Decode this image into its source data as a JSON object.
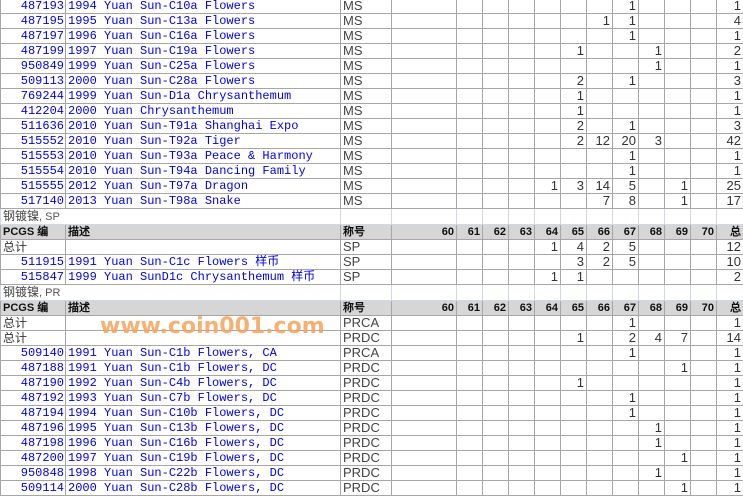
{
  "grades": [
    "60",
    "61",
    "62",
    "63",
    "64",
    "65",
    "66",
    "67",
    "68",
    "69",
    "70"
  ],
  "headers": {
    "code": "PCGS 编",
    "desc": "描述",
    "designation": "称号",
    "total": "总"
  },
  "watermark": "www.coin001.com",
  "sections": [
    {
      "label": null,
      "show_header": false,
      "rows": [
        {
          "code": "487193",
          "desc": "1994 Yuan Sun-C10a Flowers",
          "grade": "MS",
          "counts": [
            null,
            null,
            null,
            null,
            null,
            null,
            null,
            1,
            null,
            null,
            null
          ],
          "total": 1
        },
        {
          "code": "487195",
          "desc": "1995 Yuan Sun-C13a Flowers",
          "grade": "MS",
          "counts": [
            null,
            null,
            null,
            null,
            null,
            null,
            1,
            1,
            null,
            null,
            null
          ],
          "total": 4
        },
        {
          "code": "487197",
          "desc": "1996 Yuan Sun-C16a Flowers",
          "grade": "MS",
          "counts": [
            null,
            null,
            null,
            null,
            null,
            null,
            null,
            1,
            null,
            null,
            null
          ],
          "total": 1
        },
        {
          "code": "487199",
          "desc": "1997 Yuan Sun-C19a Flowers",
          "grade": "MS",
          "counts": [
            null,
            null,
            null,
            null,
            null,
            1,
            null,
            null,
            1,
            null,
            null
          ],
          "total": 2
        },
        {
          "code": "950849",
          "desc": "1999 Yuan Sun-C25a Flowers",
          "grade": "MS",
          "counts": [
            null,
            null,
            null,
            null,
            null,
            null,
            null,
            null,
            1,
            null,
            null
          ],
          "total": 1
        },
        {
          "code": "509113",
          "desc": "2000 Yuan Sun-C28a Flowers",
          "grade": "MS",
          "counts": [
            null,
            null,
            null,
            null,
            null,
            2,
            null,
            1,
            null,
            null,
            null
          ],
          "total": 3
        },
        {
          "code": "769244",
          "desc": "1999 Yuan Sun-D1a Chrysanthemum",
          "grade": "MS",
          "counts": [
            null,
            null,
            null,
            null,
            null,
            1,
            null,
            null,
            null,
            null,
            null
          ],
          "total": 1
        },
        {
          "code": "412204",
          "desc": "2000 Yuan Chrysanthemum",
          "grade": "MS",
          "counts": [
            null,
            null,
            null,
            null,
            null,
            1,
            null,
            null,
            null,
            null,
            null
          ],
          "total": 1
        },
        {
          "code": "511636",
          "desc": "2010 Yuan Sun-T91a Shanghai Expo",
          "grade": "MS",
          "counts": [
            null,
            null,
            null,
            null,
            null,
            2,
            null,
            1,
            null,
            null,
            null
          ],
          "total": 3
        },
        {
          "code": "515552",
          "desc": "2010 Yuan Sun-T92a Tiger",
          "grade": "MS",
          "counts": [
            null,
            null,
            null,
            null,
            null,
            2,
            12,
            20,
            3,
            null,
            null
          ],
          "total": 42
        },
        {
          "code": "515553",
          "desc": "2010 Yuan Sun-T93a Peace & Harmony",
          "grade": "MS",
          "counts": [
            null,
            null,
            null,
            null,
            null,
            null,
            null,
            1,
            null,
            null,
            null
          ],
          "total": 1
        },
        {
          "code": "515554",
          "desc": "2010 Yuan Sun-T94a Dancing Family",
          "grade": "MS",
          "counts": [
            null,
            null,
            null,
            null,
            null,
            null,
            null,
            1,
            null,
            null,
            null
          ],
          "total": 1
        },
        {
          "code": "515555",
          "desc": "2012 Yuan Sun-T97a Dragon",
          "grade": "MS",
          "counts": [
            null,
            null,
            null,
            null,
            1,
            3,
            14,
            5,
            null,
            1,
            null
          ],
          "total": 25
        },
        {
          "code": "517140",
          "desc": "2013 Yuan Sun-T98a Snake",
          "grade": "MS",
          "counts": [
            null,
            null,
            null,
            null,
            null,
            null,
            7,
            8,
            null,
            1,
            null
          ],
          "total": 17
        }
      ]
    },
    {
      "label": {
        "main": "钢镀镍",
        "suffix": ", SP"
      },
      "show_header": true,
      "rows": [
        {
          "code": "总计",
          "is_total": true,
          "desc": "",
          "grade": "SP",
          "counts": [
            null,
            null,
            null,
            null,
            1,
            4,
            2,
            5,
            null,
            null,
            null
          ],
          "total": 12
        },
        {
          "code": "511915",
          "desc": "1991 Yuan Sun-C1c Flowers 样币",
          "grade": "SP",
          "counts": [
            null,
            null,
            null,
            null,
            null,
            3,
            2,
            5,
            null,
            null,
            null
          ],
          "total": 10
        },
        {
          "code": "515847",
          "desc": "1999 Yuan SunD1c Chrysanthemum 样币",
          "grade": "SP",
          "counts": [
            null,
            null,
            null,
            null,
            1,
            1,
            null,
            null,
            null,
            null,
            null
          ],
          "total": 2
        }
      ]
    },
    {
      "label": {
        "main": "钢镀镍",
        "suffix": ", PR"
      },
      "show_header": true,
      "rows": [
        {
          "code": "总计",
          "is_total": true,
          "desc": "",
          "grade": "PRCA",
          "counts": [
            null,
            null,
            null,
            null,
            null,
            null,
            null,
            1,
            null,
            null,
            null
          ],
          "total": 1
        },
        {
          "code": "总计",
          "is_total": true,
          "desc": "",
          "grade": "PRDC",
          "counts": [
            null,
            null,
            null,
            null,
            null,
            1,
            null,
            2,
            4,
            7,
            null
          ],
          "total": 14
        },
        {
          "code": "509140",
          "desc": "1991 Yuan Sun-C1b Flowers, CA",
          "grade": "PRCA",
          "counts": [
            null,
            null,
            null,
            null,
            null,
            null,
            null,
            1,
            null,
            null,
            null
          ],
          "total": 1
        },
        {
          "code": "487188",
          "desc": "1991 Yuan Sun-C1b Flowers, DC",
          "grade": "PRDC",
          "counts": [
            null,
            null,
            null,
            null,
            null,
            null,
            null,
            null,
            null,
            1,
            null
          ],
          "total": 1
        },
        {
          "code": "487190",
          "desc": "1992 Yuan Sun-C4b Flowers, DC",
          "grade": "PRDC",
          "counts": [
            null,
            null,
            null,
            null,
            null,
            1,
            null,
            null,
            null,
            null,
            null
          ],
          "total": 1
        },
        {
          "code": "487192",
          "desc": "1993 Yuan Sun-C7b Flowers, DC",
          "grade": "PRDC",
          "counts": [
            null,
            null,
            null,
            null,
            null,
            null,
            null,
            1,
            null,
            null,
            null
          ],
          "total": 1
        },
        {
          "code": "487194",
          "desc": "1994 Yuan Sun-C10b Flowers, DC",
          "grade": "PRDC",
          "counts": [
            null,
            null,
            null,
            null,
            null,
            null,
            null,
            1,
            null,
            null,
            null
          ],
          "total": 1
        },
        {
          "code": "487196",
          "desc": "1995 Yuan Sun-C13b Flowers, DC",
          "grade": "PRDC",
          "counts": [
            null,
            null,
            null,
            null,
            null,
            null,
            null,
            null,
            1,
            null,
            null
          ],
          "total": 1
        },
        {
          "code": "487198",
          "desc": "1996 Yuan Sun-C16b Flowers, DC",
          "grade": "PRDC",
          "counts": [
            null,
            null,
            null,
            null,
            null,
            null,
            null,
            null,
            1,
            null,
            null
          ],
          "total": 1
        },
        {
          "code": "487200",
          "desc": "1997 Yuan Sun-C19b Flowers, DC",
          "grade": "PRDC",
          "counts": [
            null,
            null,
            null,
            null,
            null,
            null,
            null,
            null,
            null,
            1,
            null
          ],
          "total": 1
        },
        {
          "code": "950848",
          "desc": "1998 Yuan Sun-C22b Flowers, DC",
          "grade": "PRDC",
          "counts": [
            null,
            null,
            null,
            null,
            null,
            null,
            null,
            null,
            1,
            null,
            null
          ],
          "total": 1
        },
        {
          "code": "509114",
          "desc": "2000 Yuan Sun-C28b Flowers, DC",
          "grade": "PRDC",
          "counts": [
            null,
            null,
            null,
            null,
            null,
            null,
            null,
            null,
            null,
            1,
            null
          ],
          "total": 1
        }
      ]
    }
  ]
}
